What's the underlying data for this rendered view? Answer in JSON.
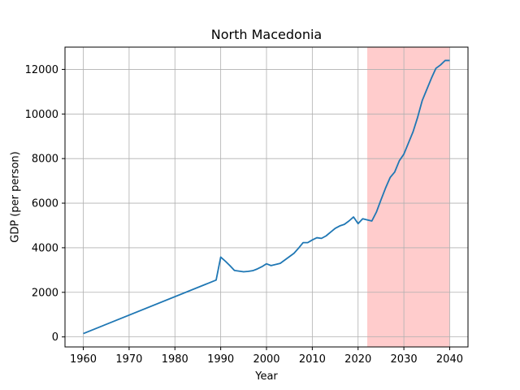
{
  "chart_data": {
    "type": "line",
    "title": "North Macedonia",
    "xlabel": "Year",
    "ylabel": "GDP (per person)",
    "xlim": [
      1956,
      2044
    ],
    "ylim": [
      -450,
      13000
    ],
    "grid": true,
    "line_color": "#1f77b4",
    "shade_color": "#ffcccc",
    "shaded_region": [
      2022,
      2040
    ],
    "x_ticks": [
      1960,
      1970,
      1980,
      1990,
      2000,
      2010,
      2020,
      2030,
      2040
    ],
    "y_ticks": [
      0,
      2000,
      4000,
      6000,
      8000,
      10000,
      12000
    ],
    "series": [
      {
        "x": [
          1960,
          1989,
          1990,
          1991,
          1992,
          1993,
          1995,
          1996,
          1997,
          1998,
          1999,
          2000,
          2001,
          2002,
          2003,
          2004,
          2005,
          2006,
          2007,
          2008,
          2009,
          2010,
          2011,
          2012,
          2013,
          2014,
          2015,
          2016,
          2017,
          2018,
          2019,
          2020,
          2021,
          2022,
          2023,
          2024,
          2025,
          2026,
          2027,
          2028,
          2029,
          2030,
          2031,
          2032,
          2033,
          2034,
          2035,
          2036,
          2037,
          2038,
          2039,
          2040
        ],
        "y": [
          150,
          2550,
          3580,
          3400,
          3200,
          2980,
          2920,
          2940,
          2970,
          3050,
          3150,
          3280,
          3200,
          3250,
          3300,
          3450,
          3600,
          3750,
          3980,
          4230,
          4230,
          4350,
          4450,
          4420,
          4530,
          4700,
          4870,
          4980,
          5050,
          5200,
          5380,
          5080,
          5300,
          5250,
          5200,
          5600,
          6150,
          6680,
          7150,
          7400,
          7900,
          8200,
          8700,
          9200,
          9850,
          10600,
          11100,
          11600,
          12050,
          12200,
          12400,
          12400
        ]
      }
    ]
  }
}
